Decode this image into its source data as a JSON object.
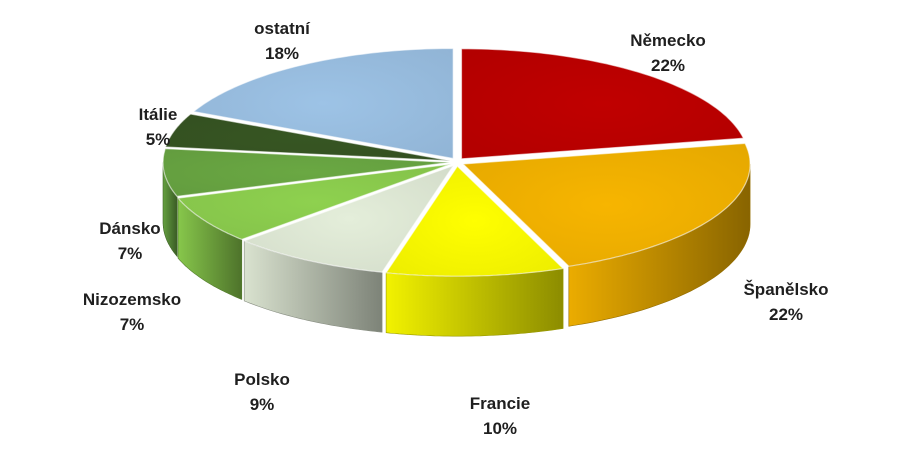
{
  "chart_data": {
    "type": "pie",
    "style": "3d-exploded",
    "title": "",
    "legend": "none",
    "slices": [
      {
        "label": "Německo",
        "value": 22,
        "value_label": "22%",
        "color": "#c00000"
      },
      {
        "label": "Španělsko",
        "value": 22,
        "value_label": "22%",
        "color": "#f7b500"
      },
      {
        "label": "Francie",
        "value": 10,
        "value_label": "10%",
        "color": "#ffff00"
      },
      {
        "label": "Polsko",
        "value": 9,
        "value_label": "9%",
        "color": "#e4eeda"
      },
      {
        "label": "Nizozemsko",
        "value": 7,
        "value_label": "7%",
        "color": "#8ed14f"
      },
      {
        "label": "Dánsko",
        "value": 7,
        "value_label": "7%",
        "color": "#6aa843"
      },
      {
        "label": "Itálie",
        "value": 5,
        "value_label": "5%",
        "color": "#375623"
      },
      {
        "label": "ostatní",
        "value": 18,
        "value_label": "18%",
        "color": "#9dc3e6"
      }
    ]
  }
}
